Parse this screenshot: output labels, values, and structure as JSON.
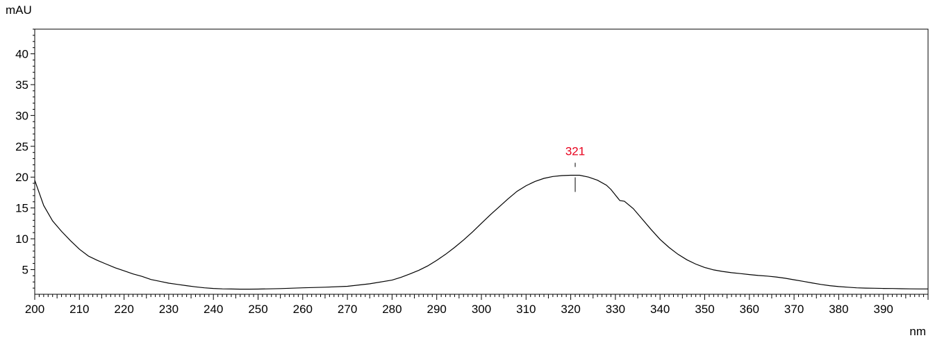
{
  "chart_data": {
    "type": "line",
    "ylabel": "mAU",
    "xlabel": "nm",
    "xlim": [
      200,
      400
    ],
    "ylim": [
      1.0,
      44.0
    ],
    "x_ticks": [
      200,
      210,
      220,
      230,
      240,
      250,
      260,
      270,
      280,
      290,
      300,
      310,
      320,
      330,
      340,
      350,
      360,
      370,
      380,
      390
    ],
    "y_ticks": [
      5,
      10,
      15,
      20,
      25,
      30,
      35,
      40
    ],
    "grid": false,
    "colors": {
      "line": "#000000",
      "axis": "#000000",
      "peak_label": "#e8001c"
    },
    "peak": {
      "label": "321",
      "x": 321,
      "y": 20.3
    },
    "series": [
      {
        "x": [
          200,
          202,
          204,
          206,
          208,
          210,
          212,
          214,
          216,
          218,
          220,
          222,
          224,
          226,
          228,
          230,
          232,
          234,
          236,
          238,
          240,
          242,
          244,
          246,
          248,
          250,
          255,
          260,
          265,
          270,
          275,
          280,
          282,
          284,
          286,
          288,
          290,
          292,
          294,
          296,
          298,
          300,
          302,
          304,
          306,
          308,
          310,
          312,
          314,
          316,
          318,
          320,
          321,
          322,
          324,
          326,
          328,
          329,
          330,
          331,
          332,
          334,
          336,
          338,
          340,
          342,
          344,
          346,
          348,
          350,
          352,
          354,
          356,
          358,
          360,
          362,
          364,
          366,
          368,
          370,
          372,
          374,
          376,
          378,
          380,
          382,
          384,
          386,
          388,
          390,
          392,
          394,
          396,
          398,
          400
        ],
        "y": [
          19.5,
          15.4,
          12.9,
          11.2,
          9.7,
          8.3,
          7.2,
          6.5,
          5.9,
          5.3,
          4.8,
          4.3,
          3.9,
          3.4,
          3.1,
          2.8,
          2.6,
          2.4,
          2.2,
          2.05,
          1.95,
          1.88,
          1.85,
          1.83,
          1.83,
          1.84,
          1.92,
          2.05,
          2.15,
          2.3,
          2.7,
          3.3,
          3.75,
          4.3,
          4.9,
          5.6,
          6.5,
          7.5,
          8.6,
          9.8,
          11.1,
          12.5,
          13.9,
          15.2,
          16.5,
          17.7,
          18.6,
          19.3,
          19.8,
          20.1,
          20.25,
          20.3,
          20.3,
          20.3,
          20.0,
          19.5,
          18.7,
          18.0,
          17.1,
          16.2,
          16.1,
          14.9,
          13.2,
          11.5,
          9.9,
          8.6,
          7.5,
          6.6,
          5.9,
          5.35,
          4.95,
          4.7,
          4.5,
          4.35,
          4.2,
          4.05,
          3.95,
          3.8,
          3.6,
          3.35,
          3.1,
          2.85,
          2.6,
          2.4,
          2.25,
          2.15,
          2.05,
          2.0,
          1.98,
          1.95,
          1.93,
          1.9,
          1.88,
          1.87,
          1.87
        ]
      }
    ]
  }
}
